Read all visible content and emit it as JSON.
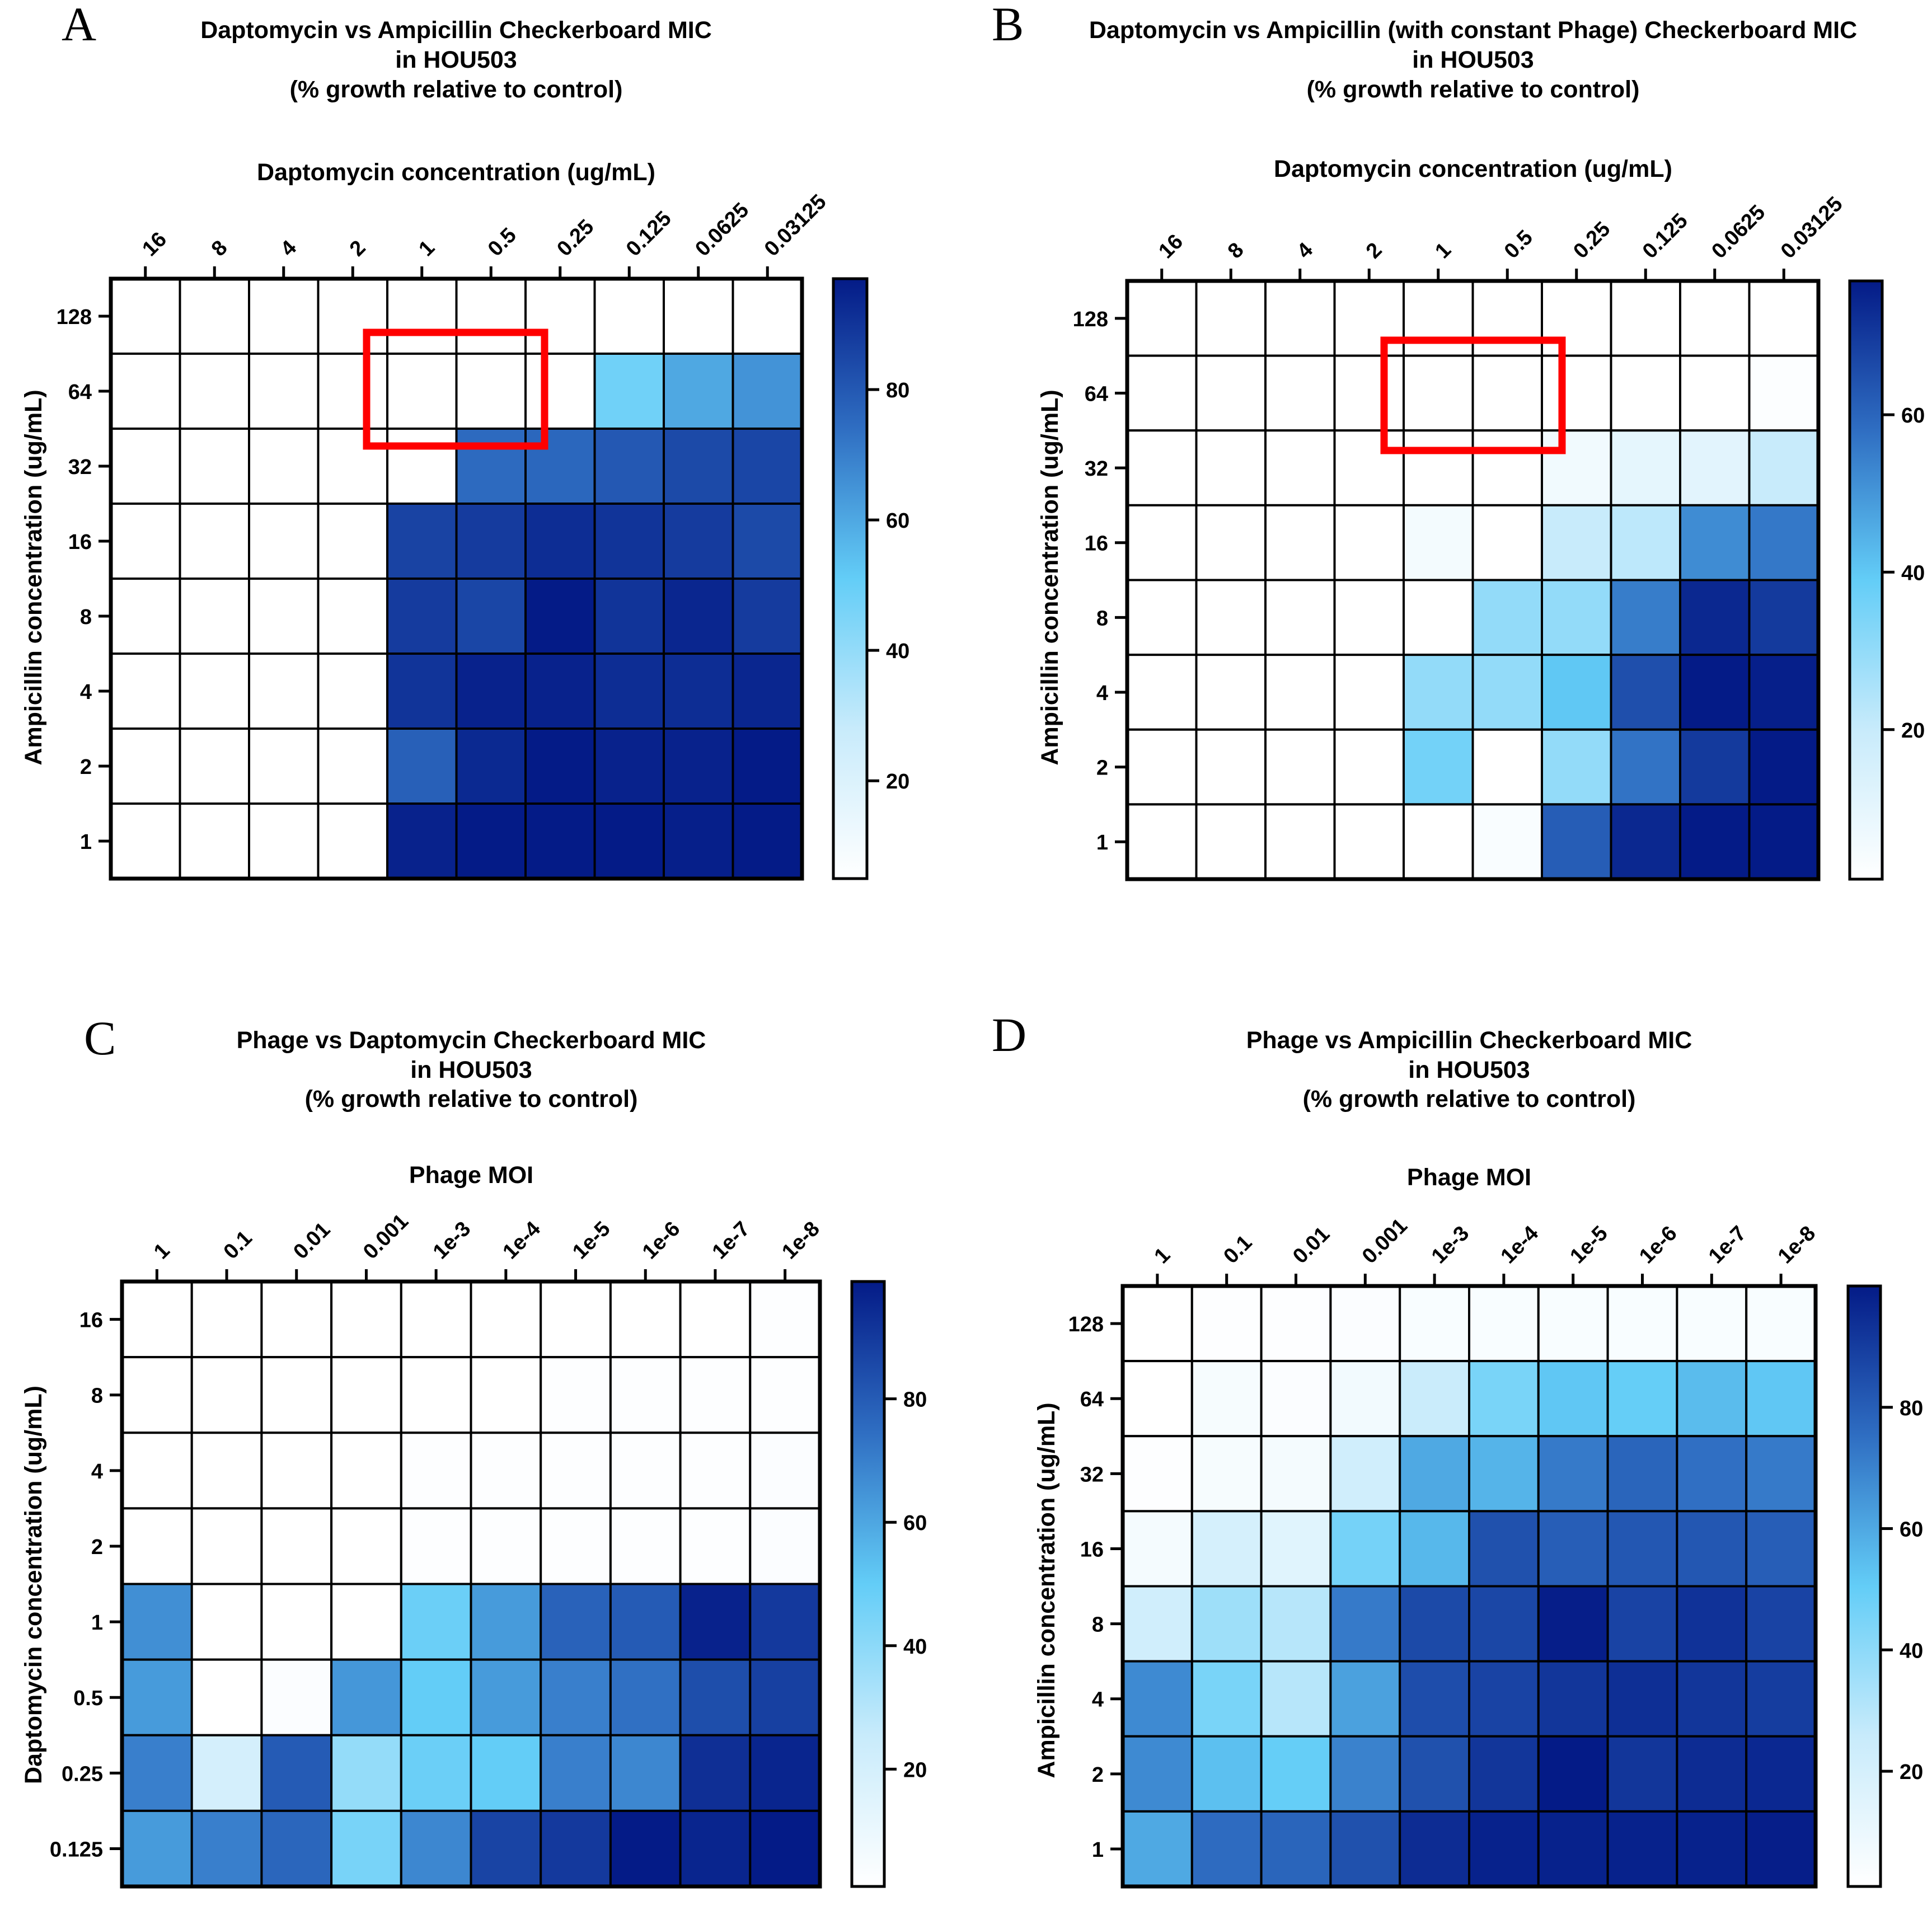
{
  "chart_data": [
    {
      "type": "heatmap",
      "panel_label": "A",
      "title": [
        "Daptomycin vs Ampicillin Checkerboard MIC",
        "in HOU503",
        "(% growth relative to control)"
      ],
      "xlabel": "Daptomycin concentration (ug/mL)",
      "ylabel": "Ampicillin concentration (ug/mL)",
      "x_categories": [
        "16",
        "8",
        "4",
        "2",
        "1",
        "0.5",
        "0.25",
        "0.125",
        "0.0625",
        "0.03125"
      ],
      "y_categories": [
        "128",
        "64",
        "32",
        "16",
        "8",
        "4",
        "2",
        "1"
      ],
      "values": [
        [
          2,
          2,
          2,
          2,
          2,
          2,
          2,
          2,
          3,
          5
        ],
        [
          2,
          2,
          2,
          2,
          2,
          2,
          4,
          48,
          60,
          65
        ],
        [
          2,
          2,
          2,
          2,
          4,
          75,
          76,
          80,
          84,
          85
        ],
        [
          2,
          2,
          2,
          2,
          86,
          88,
          92,
          90,
          88,
          84
        ],
        [
          2,
          2,
          2,
          2,
          88,
          85,
          100,
          90,
          94,
          88
        ],
        [
          2,
          2,
          2,
          2,
          90,
          95,
          95,
          92,
          92,
          94
        ],
        [
          2,
          2,
          2,
          2,
          78,
          93,
          97,
          95,
          95,
          97
        ],
        [
          2,
          2,
          2,
          2,
          95,
          98,
          97,
          97,
          96,
          97
        ]
      ],
      "colorbar": {
        "min": 5,
        "max": 97,
        "ticks": [
          20,
          40,
          60,
          80
        ]
      },
      "highlight": {
        "rows": [
          "64"
        ],
        "columns": [
          "1",
          "0.5"
        ],
        "color": "#ff0000"
      }
    },
    {
      "type": "heatmap",
      "panel_label": "B",
      "title": [
        "Daptomycin vs Ampicillin (with constant Phage) Checkerboard MIC",
        "in HOU503",
        "(% growth relative to control)"
      ],
      "xlabel": "Daptomycin concentration (ug/mL)",
      "ylabel": "Ampicillin concentration (ug/mL)",
      "x_categories": [
        "16",
        "8",
        "4",
        "2",
        "1",
        "0.5",
        "0.25",
        "0.125",
        "0.0625",
        "0.03125"
      ],
      "y_categories": [
        "128",
        "64",
        "32",
        "16",
        "8",
        "4",
        "2",
        "1"
      ],
      "values": [
        [
          1,
          1,
          1,
          1,
          1,
          1,
          1,
          1,
          1,
          1
        ],
        [
          1,
          1,
          1,
          1,
          1,
          1,
          1,
          1,
          1,
          2
        ],
        [
          1,
          1,
          1,
          1,
          1,
          1,
          6,
          10,
          11,
          20
        ],
        [
          1,
          1,
          1,
          1,
          5,
          1,
          20,
          22,
          52,
          56
        ],
        [
          1,
          1,
          1,
          1,
          1,
          30,
          30,
          55,
          74,
          70
        ],
        [
          1,
          1,
          1,
          1,
          30,
          30,
          40,
          65,
          80,
          76
        ],
        [
          1,
          1,
          1,
          1,
          36,
          1,
          30,
          57,
          70,
          78
        ],
        [
          1,
          1,
          1,
          1,
          1,
          3,
          62,
          74,
          78,
          80
        ]
      ],
      "colorbar": {
        "min": 1,
        "max": 77,
        "ticks": [
          20,
          40,
          60
        ]
      },
      "highlight": {
        "rows": [
          "64"
        ],
        "columns": [
          "1",
          "0.5"
        ],
        "color": "#ff0000"
      }
    },
    {
      "type": "heatmap",
      "panel_label": "C",
      "title": [
        "Phage vs Daptomycin Checkerboard MIC",
        "in HOU503",
        "(% growth relative to control)"
      ],
      "xlabel": "Phage MOI",
      "ylabel": "Daptomycin concentration (ug/mL)",
      "x_categories": [
        "1",
        "0.1",
        "0.01",
        "0.001",
        "1e-3",
        "1e-4",
        "1e-5",
        "1e-6",
        "1e-7",
        "1e-8"
      ],
      "y_categories": [
        "16",
        "8",
        "4",
        "2",
        "1",
        "0.5",
        "0.25",
        "0.125"
      ],
      "values": [
        [
          1,
          1,
          1,
          1,
          1,
          1,
          1,
          1,
          1,
          2
        ],
        [
          1,
          1,
          1,
          1,
          1,
          1,
          2,
          2,
          2,
          2
        ],
        [
          1,
          1,
          1,
          1,
          2,
          2,
          2,
          2,
          2,
          3
        ],
        [
          1,
          1,
          1,
          1,
          2,
          2,
          2,
          2,
          2,
          3
        ],
        [
          66,
          1,
          1,
          1,
          48,
          63,
          78,
          80,
          97,
          90
        ],
        [
          63,
          1,
          3,
          64,
          50,
          63,
          70,
          74,
          84,
          88
        ],
        [
          70,
          20,
          80,
          38,
          48,
          50,
          70,
          68,
          93,
          96
        ],
        [
          63,
          70,
          77,
          45,
          68,
          87,
          90,
          99,
          96,
          99
        ]
      ],
      "colorbar": {
        "min": 1,
        "max": 99,
        "ticks": [
          20,
          40,
          60,
          80
        ]
      }
    },
    {
      "type": "heatmap",
      "panel_label": "D",
      "title": [
        "Phage vs Ampicillin Checkerboard MIC",
        "in HOU503",
        "(% growth relative to control)"
      ],
      "xlabel": "Phage MOI",
      "ylabel": "Ampicillin concentration (ug/mL)",
      "x_categories": [
        "1",
        "0.1",
        "0.01",
        "0.001",
        "1e-3",
        "1e-4",
        "1e-5",
        "1e-6",
        "1e-7",
        "1e-8"
      ],
      "y_categories": [
        "128",
        "64",
        "32",
        "16",
        "8",
        "4",
        "2",
        "1"
      ],
      "values": [
        [
          1,
          2,
          2,
          3,
          4,
          4,
          4,
          4,
          4,
          4
        ],
        [
          1,
          5,
          3,
          7,
          25,
          45,
          52,
          50,
          55,
          52
        ],
        [
          2,
          5,
          6,
          22,
          60,
          57,
          72,
          78,
          75,
          72
        ],
        [
          6,
          20,
          15,
          46,
          56,
          84,
          80,
          82,
          82,
          80
        ],
        [
          22,
          36,
          30,
          72,
          86,
          87,
          99,
          88,
          93,
          88
        ],
        [
          68,
          45,
          30,
          62,
          85,
          88,
          92,
          94,
          92,
          90
        ],
        [
          68,
          54,
          50,
          70,
          84,
          92,
          100,
          92,
          95,
          96
        ],
        [
          60,
          76,
          78,
          84,
          95,
          98,
          98,
          98,
          98,
          99
        ]
      ],
      "colorbar": {
        "min": 1,
        "max": 100,
        "ticks": [
          20,
          40,
          60,
          80
        ]
      }
    }
  ]
}
